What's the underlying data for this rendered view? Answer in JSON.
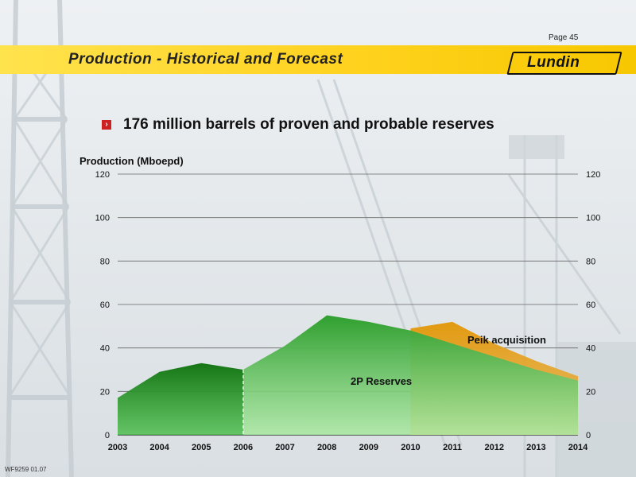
{
  "page": {
    "number": "Page 45",
    "footer": "WF9259 01.07"
  },
  "header": {
    "title": "Production - Historical and Forecast",
    "logo_text": "Lundin"
  },
  "bullet": {
    "text": "176 million barrels of proven and probable reserves"
  },
  "colors": {
    "historical": "#1f8a1f",
    "reserves": "#3fb83f",
    "peik": "#e0a020",
    "band": "#ffd21f"
  },
  "chart_data": {
    "type": "area",
    "ylabel": "Production (Mboepd)",
    "ylim": [
      0,
      120
    ],
    "yticks": [
      "0",
      "20",
      "40",
      "60",
      "80",
      "100",
      "120"
    ],
    "xticks": [
      "2003",
      "2004",
      "2005",
      "2006",
      "2007",
      "2008",
      "2009",
      "2010",
      "2011",
      "2012",
      "2013",
      "2014"
    ],
    "xlim": [
      2003,
      2014
    ],
    "series": [
      {
        "key": "historical",
        "x": [
          2003,
          2004,
          2005,
          2006
        ],
        "values": [
          17,
          29,
          33,
          30
        ]
      },
      {
        "key": "reserves",
        "name": "2P Reserves",
        "x": [
          2006,
          2007,
          2008,
          2009,
          2010,
          2011,
          2012,
          2013,
          2014
        ],
        "values": [
          30,
          41,
          55,
          52,
          48,
          42,
          36,
          30,
          25
        ]
      },
      {
        "key": "peik",
        "name": "Peik acquisition",
        "x": [
          2010,
          2011,
          2012,
          2013,
          2014
        ],
        "values": [
          49,
          52,
          42,
          34,
          27
        ]
      }
    ],
    "annotations": [
      {
        "text": "Peik acquisition",
        "x": 2012.3,
        "y": 42
      },
      {
        "text": "2P Reserves",
        "x": 2009.3,
        "y": 23
      }
    ],
    "grid": true
  }
}
